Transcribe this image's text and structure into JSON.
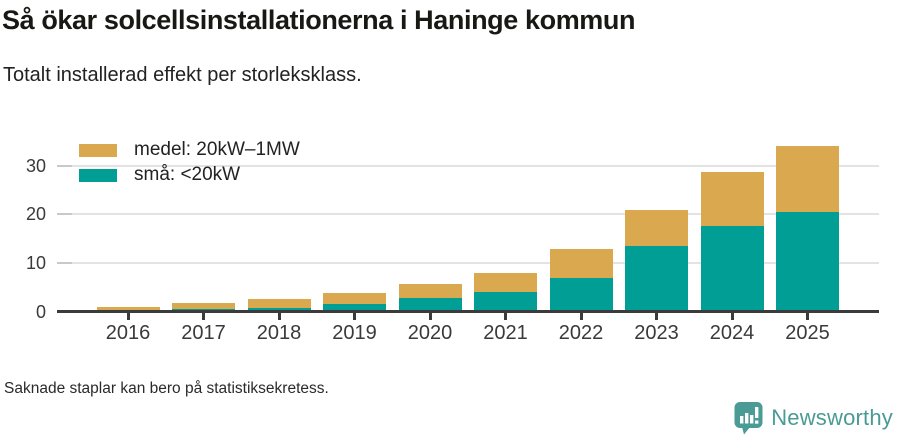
{
  "header": {
    "title": "Så ökar solcellsinstallationerna i Haninge kommun",
    "subtitle": "Totalt installerad effekt per storleksklass."
  },
  "legend": {
    "items": [
      {
        "label": "medel: 20kW–1MW",
        "color": "#d9a84f"
      },
      {
        "label": "små: <20kW",
        "color": "#009e94"
      }
    ]
  },
  "chart_data": {
    "type": "bar",
    "stacked": true,
    "title": "Så ökar solcellsinstallationerna i Haninge kommun",
    "subtitle": "Totalt installerad effekt per storleksklass.",
    "xlabel": "",
    "ylabel": "",
    "categories": [
      "2016",
      "2017",
      "2018",
      "2019",
      "2020",
      "2021",
      "2022",
      "2023",
      "2024",
      "2025"
    ],
    "series": [
      {
        "name": "små: <20kW",
        "color": "#009e94",
        "values": [
          0.1,
          0.6,
          0.9,
          1.6,
          2.9,
          4.0,
          7.0,
          13.6,
          17.6,
          20.5
        ]
      },
      {
        "name": "medel: 20kW–1MW",
        "color": "#d9a84f",
        "values": [
          1.0,
          1.3,
          1.8,
          2.3,
          2.9,
          4.0,
          6.0,
          7.4,
          11.0,
          13.5
        ]
      }
    ],
    "totals": [
      1.1,
      1.9,
      2.7,
      3.9,
      5.8,
      8.0,
      13.0,
      21.0,
      28.6,
      34.0
    ],
    "yticks": [
      0,
      10,
      20,
      30
    ],
    "ylim": [
      0,
      35
    ],
    "grid": "horizontal",
    "legend_position": "top-left-inside"
  },
  "footer": {
    "note": "Saknade staplar kan bero på statistiksekretess.",
    "brand": "Newsworthy"
  },
  "colors": {
    "medel": "#d9a84f",
    "sma": "#009e94",
    "brand_teal": "#4a9b95",
    "axis": "#3b3b3b",
    "gridline": "#e3e3e3"
  }
}
